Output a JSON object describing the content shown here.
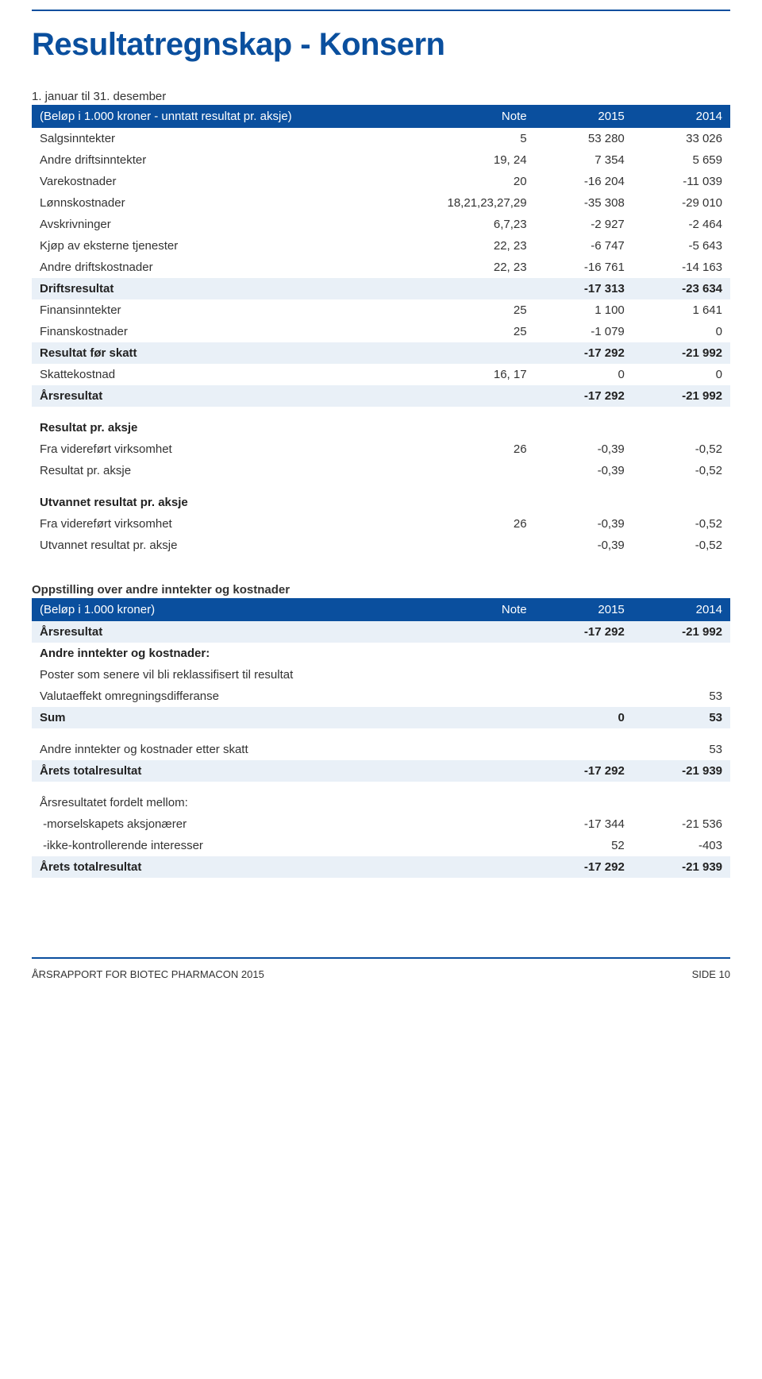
{
  "page_title": "Resultatregnskap - Konsern",
  "colors": {
    "brand_blue": "#0a4f9e",
    "row_alt_bg": "#e9f0f7",
    "text": "#333333",
    "bg": "#ffffff"
  },
  "typography": {
    "title_fontsize": 40,
    "body_fontsize": 15,
    "footer_fontsize": 13
  },
  "table1": {
    "subhead": "1. januar til 31. desember",
    "header": [
      "(Beløp i 1.000 kroner - unntatt resultat pr. aksje)",
      "Note",
      "2015",
      "2014"
    ],
    "rows": [
      {
        "cells": [
          "Salgsinntekter",
          "5",
          "53 280",
          "33 026"
        ]
      },
      {
        "cells": [
          "Andre driftsinntekter",
          "19, 24",
          "7 354",
          "5 659"
        ]
      },
      {
        "cells": [
          "Varekostnader",
          "20",
          "-16 204",
          "-11 039"
        ]
      },
      {
        "cells": [
          "Lønnskostnader",
          "18,21,23,27,29",
          "-35 308",
          "-29 010"
        ]
      },
      {
        "cells": [
          "Avskrivninger",
          "6,7,23",
          "-2 927",
          "-2 464"
        ]
      },
      {
        "cells": [
          "Kjøp av eksterne tjenester",
          "22, 23",
          "-6 747",
          "-5 643"
        ]
      },
      {
        "cells": [
          "Andre driftskostnader",
          "22, 23",
          "-16 761",
          "-14 163"
        ]
      },
      {
        "cells": [
          "Driftsresultat",
          "",
          "-17 313",
          "-23 634"
        ],
        "alt": true,
        "bold": true
      },
      {
        "cells": [
          "Finansinntekter",
          "25",
          "1 100",
          "1 641"
        ]
      },
      {
        "cells": [
          "Finanskostnader",
          "25",
          "-1 079",
          "0"
        ]
      },
      {
        "cells": [
          "Resultat før skatt",
          "",
          "-17 292",
          "-21 992"
        ],
        "alt": true,
        "bold": true
      },
      {
        "cells": [
          "Skattekostnad",
          "16, 17",
          "0",
          "0"
        ]
      },
      {
        "cells": [
          "Årsresultat",
          "",
          "-17 292",
          "-21 992"
        ],
        "alt": true,
        "bold": true
      },
      {
        "cells": [
          "Resultat pr. aksje",
          "",
          "",
          ""
        ],
        "bold": true,
        "gap": true
      },
      {
        "cells": [
          "Fra videreført virksomhet",
          "26",
          "-0,39",
          "-0,52"
        ]
      },
      {
        "cells": [
          "Resultat pr. aksje",
          "",
          "-0,39",
          "-0,52"
        ]
      },
      {
        "cells": [
          "Utvannet resultat pr. aksje",
          "",
          "",
          ""
        ],
        "bold": true,
        "gap": true
      },
      {
        "cells": [
          "Fra videreført virksomhet",
          "26",
          "-0,39",
          "-0,52"
        ]
      },
      {
        "cells": [
          "Utvannet resultat pr. aksje",
          "",
          "-0,39",
          "-0,52"
        ]
      }
    ]
  },
  "table2": {
    "subhead": "Oppstilling over andre inntekter og kostnader",
    "header": [
      "(Beløp i 1.000 kroner)",
      "Note",
      "2015",
      "2014"
    ],
    "rows": [
      {
        "cells": [
          "Årsresultat",
          "",
          "-17 292",
          "-21 992"
        ],
        "alt": true,
        "bold": true
      },
      {
        "cells": [
          "Andre inntekter og kostnader:",
          "",
          "",
          ""
        ],
        "bold": true
      },
      {
        "cells": [
          "Poster som senere vil bli reklassifisert til resultat",
          "",
          "",
          ""
        ]
      },
      {
        "cells": [
          "Valutaeffekt omregningsdifferanse",
          "",
          "",
          "53"
        ]
      },
      {
        "cells": [
          "Sum",
          "",
          "0",
          "53"
        ],
        "alt": true,
        "bold": true
      },
      {
        "cells": [
          "Andre inntekter og kostnader etter skatt",
          "",
          "",
          "53"
        ],
        "gap": true
      },
      {
        "cells": [
          "Årets totalresultat",
          "",
          "-17 292",
          "-21 939"
        ],
        "alt": true,
        "bold": true
      },
      {
        "cells": [
          "Årsresultatet fordelt mellom:",
          "",
          "",
          ""
        ],
        "gap": true
      },
      {
        "cells": [
          " -morselskapets aksjonærer",
          "",
          "-17 344",
          "-21 536"
        ]
      },
      {
        "cells": [
          " -ikke-kontrollerende interesser",
          "",
          "52",
          "-403"
        ]
      },
      {
        "cells": [
          "Årets totalresultat",
          "",
          "-17 292",
          "-21 939"
        ],
        "alt": true,
        "bold": true
      }
    ]
  },
  "footer": {
    "left": "ÅRSRAPPORT FOR BIOTEC PHARMACON 2015",
    "right": "SIDE 10"
  }
}
